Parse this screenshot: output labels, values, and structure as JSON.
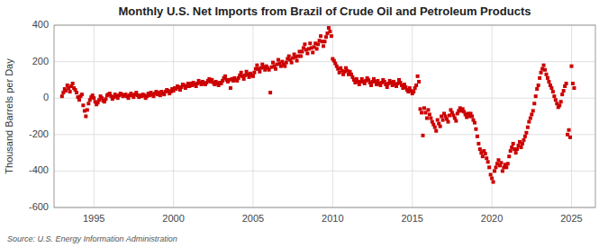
{
  "chart_data": {
    "type": "scatter",
    "title": "Monthly U.S. Net Imports from Brazil of Crude Oil and Petroleum Products",
    "ylabel": "Thousand Barrels per Day",
    "annotations": [
      "Source: U.S. Energy Information Administration"
    ],
    "color": "#cc0000",
    "marker": "square",
    "grid": true,
    "xlim": [
      1992.5,
      2026.5
    ],
    "xticks": [
      1995,
      2000,
      2005,
      2010,
      2015,
      2020,
      2025
    ],
    "ylim": [
      -600,
      400
    ],
    "yticks": [
      -600,
      -400,
      -200,
      0,
      200,
      400
    ],
    "x": [
      1993.0,
      1993.083,
      1993.167,
      1993.25,
      1993.333,
      1993.417,
      1993.5,
      1993.583,
      1993.667,
      1993.75,
      1993.833,
      1993.917,
      1994.0,
      1994.083,
      1994.167,
      1994.25,
      1994.333,
      1994.417,
      1994.5,
      1994.583,
      1994.667,
      1994.75,
      1994.833,
      1994.917,
      1995.0,
      1995.083,
      1995.167,
      1995.25,
      1995.333,
      1995.417,
      1995.5,
      1995.583,
      1995.667,
      1995.75,
      1995.833,
      1995.917,
      1996.0,
      1996.083,
      1996.167,
      1996.25,
      1996.333,
      1996.417,
      1996.5,
      1996.583,
      1996.667,
      1996.75,
      1996.833,
      1996.917,
      1997.0,
      1997.083,
      1997.167,
      1997.25,
      1997.333,
      1997.417,
      1997.5,
      1997.583,
      1997.667,
      1997.75,
      1997.833,
      1997.917,
      1998.0,
      1998.083,
      1998.167,
      1998.25,
      1998.333,
      1998.417,
      1998.5,
      1998.583,
      1998.667,
      1998.75,
      1998.833,
      1998.917,
      1999.0,
      1999.083,
      1999.167,
      1999.25,
      1999.333,
      1999.417,
      1999.5,
      1999.583,
      1999.667,
      1999.75,
      1999.833,
      1999.917,
      2000.0,
      2000.083,
      2000.167,
      2000.25,
      2000.333,
      2000.417,
      2000.5,
      2000.583,
      2000.667,
      2000.75,
      2000.833,
      2000.917,
      2001.0,
      2001.083,
      2001.167,
      2001.25,
      2001.333,
      2001.417,
      2001.5,
      2001.583,
      2001.667,
      2001.75,
      2001.833,
      2001.917,
      2002.0,
      2002.083,
      2002.167,
      2002.25,
      2002.333,
      2002.417,
      2002.5,
      2002.583,
      2002.667,
      2002.75,
      2002.833,
      2002.917,
      2003.0,
      2003.083,
      2003.167,
      2003.25,
      2003.333,
      2003.417,
      2003.5,
      2003.583,
      2003.667,
      2003.75,
      2003.833,
      2003.917,
      2004.0,
      2004.083,
      2004.167,
      2004.25,
      2004.333,
      2004.417,
      2004.5,
      2004.583,
      2004.667,
      2004.75,
      2004.833,
      2004.917,
      2005.0,
      2005.083,
      2005.167,
      2005.25,
      2005.333,
      2005.417,
      2005.5,
      2005.583,
      2005.667,
      2005.75,
      2005.833,
      2005.917,
      2006.0,
      2006.083,
      2006.167,
      2006.25,
      2006.333,
      2006.417,
      2006.5,
      2006.583,
      2006.667,
      2006.75,
      2006.833,
      2006.917,
      2007.0,
      2007.083,
      2007.167,
      2007.25,
      2007.333,
      2007.417,
      2007.5,
      2007.583,
      2007.667,
      2007.75,
      2007.833,
      2007.917,
      2008.0,
      2008.083,
      2008.167,
      2008.25,
      2008.333,
      2008.417,
      2008.5,
      2008.583,
      2008.667,
      2008.75,
      2008.833,
      2008.917,
      2009.0,
      2009.083,
      2009.167,
      2009.25,
      2009.333,
      2009.417,
      2009.5,
      2009.583,
      2009.667,
      2009.75,
      2009.833,
      2009.917,
      2010.0,
      2010.083,
      2010.167,
      2010.25,
      2010.333,
      2010.417,
      2010.5,
      2010.583,
      2010.667,
      2010.75,
      2010.833,
      2010.917,
      2011.0,
      2011.083,
      2011.167,
      2011.25,
      2011.333,
      2011.417,
      2011.5,
      2011.583,
      2011.667,
      2011.75,
      2011.833,
      2011.917,
      2012.0,
      2012.083,
      2012.167,
      2012.25,
      2012.333,
      2012.417,
      2012.5,
      2012.583,
      2012.667,
      2012.75,
      2012.833,
      2012.917,
      2013.0,
      2013.083,
      2013.167,
      2013.25,
      2013.333,
      2013.417,
      2013.5,
      2013.583,
      2013.667,
      2013.75,
      2013.833,
      2013.917,
      2014.0,
      2014.083,
      2014.167,
      2014.25,
      2014.333,
      2014.417,
      2014.5,
      2014.583,
      2014.667,
      2014.75,
      2014.833,
      2014.917,
      2015.0,
      2015.083,
      2015.167,
      2015.25,
      2015.333,
      2015.417,
      2015.5,
      2015.583,
      2015.667,
      2015.75,
      2015.833,
      2015.917,
      2016.0,
      2016.083,
      2016.167,
      2016.25,
      2016.333,
      2016.417,
      2016.5,
      2016.583,
      2016.667,
      2016.75,
      2016.833,
      2016.917,
      2017.0,
      2017.083,
      2017.167,
      2017.25,
      2017.333,
      2017.417,
      2017.5,
      2017.583,
      2017.667,
      2017.75,
      2017.833,
      2017.917,
      2018.0,
      2018.083,
      2018.167,
      2018.25,
      2018.333,
      2018.417,
      2018.5,
      2018.583,
      2018.667,
      2018.75,
      2018.833,
      2018.917,
      2019.0,
      2019.083,
      2019.167,
      2019.25,
      2019.333,
      2019.417,
      2019.5,
      2019.583,
      2019.667,
      2019.75,
      2019.833,
      2019.917,
      2020.0,
      2020.083,
      2020.167,
      2020.25,
      2020.333,
      2020.417,
      2020.5,
      2020.583,
      2020.667,
      2020.75,
      2020.833,
      2020.917,
      2021.0,
      2021.083,
      2021.167,
      2021.25,
      2021.333,
      2021.417,
      2021.5,
      2021.583,
      2021.667,
      2021.75,
      2021.833,
      2021.917,
      2022.0,
      2022.083,
      2022.167,
      2022.25,
      2022.333,
      2022.417,
      2022.5,
      2022.583,
      2022.667,
      2022.75,
      2022.833,
      2022.917,
      2023.0,
      2023.083,
      2023.167,
      2023.25,
      2023.333,
      2023.417,
      2023.5,
      2023.583,
      2023.667,
      2023.75,
      2023.833,
      2023.917,
      2024.0,
      2024.083,
      2024.167,
      2024.25,
      2024.333,
      2024.417,
      2024.5,
      2024.583,
      2024.667,
      2024.75,
      2024.833,
      2024.917,
      2025.0,
      2025.083,
      2025.167
    ],
    "values": [
      10,
      30,
      50,
      40,
      70,
      55,
      35,
      65,
      80,
      55,
      45,
      30,
      5,
      -10,
      10,
      20,
      -40,
      -70,
      -100,
      -65,
      -30,
      -10,
      5,
      15,
      0,
      -20,
      -35,
      -25,
      -10,
      10,
      0,
      -15,
      -20,
      -5,
      15,
      20,
      25,
      10,
      -5,
      5,
      20,
      10,
      0,
      15,
      25,
      20,
      10,
      15,
      20,
      10,
      0,
      15,
      25,
      15,
      5,
      20,
      30,
      15,
      5,
      15,
      10,
      20,
      15,
      0,
      10,
      25,
      15,
      30,
      20,
      10,
      25,
      35,
      20,
      30,
      15,
      35,
      25,
      20,
      35,
      45,
      40,
      25,
      35,
      50,
      40,
      55,
      50,
      65,
      60,
      45,
      60,
      75,
      70,
      55,
      65,
      80,
      65,
      80,
      70,
      85,
      75,
      65,
      80,
      95,
      85,
      75,
      90,
      80,
      75,
      85,
      95,
      105,
      90,
      100,
      85,
      75,
      90,
      80,
      70,
      85,
      80,
      95,
      110,
      120,
      100,
      90,
      100,
      55,
      105,
      95,
      110,
      100,
      95,
      110,
      125,
      140,
      120,
      105,
      125,
      145,
      130,
      115,
      135,
      125,
      120,
      140,
      160,
      180,
      160,
      145,
      165,
      185,
      170,
      155,
      175,
      165,
      155,
      30,
      170,
      195,
      175,
      160,
      185,
      210,
      190,
      175,
      200,
      185,
      175,
      195,
      215,
      230,
      210,
      195,
      220,
      240,
      225,
      205,
      230,
      255,
      230,
      255,
      275,
      295,
      265,
      245,
      270,
      300,
      275,
      250,
      280,
      300,
      270,
      295,
      315,
      340,
      310,
      285,
      310,
      335,
      355,
      385,
      365,
      340,
      215,
      205,
      190,
      175,
      160,
      140,
      165,
      150,
      130,
      145,
      165,
      150,
      130,
      145,
      130,
      115,
      100,
      85,
      105,
      90,
      75,
      90,
      105,
      90,
      80,
      95,
      110,
      100,
      85,
      70,
      90,
      105,
      90,
      75,
      95,
      80,
      70,
      85,
      100,
      90,
      75,
      60,
      80,
      95,
      85,
      70,
      90,
      75,
      65,
      80,
      100,
      85,
      70,
      55,
      75,
      60,
      45,
      35,
      55,
      40,
      25,
      35,
      55,
      70,
      120,
      90,
      -60,
      -80,
      -205,
      -55,
      -80,
      -110,
      -65,
      -90,
      -110,
      -130,
      -145,
      -160,
      -180,
      -120,
      -140,
      -155,
      -100,
      -120,
      -85,
      -100,
      -115,
      -130,
      -95,
      -65,
      -80,
      -95,
      -110,
      -125,
      -85,
      -70,
      -55,
      -70,
      -60,
      -75,
      -90,
      -105,
      -85,
      -100,
      -85,
      -100,
      -120,
      -135,
      -170,
      -210,
      -250,
      -280,
      -300,
      -320,
      -290,
      -305,
      -330,
      -350,
      -380,
      -420,
      -440,
      -460,
      -400,
      -380,
      -360,
      -340,
      -370,
      -355,
      -400,
      -380,
      -365,
      -380,
      -360,
      -320,
      -290,
      -270,
      -250,
      -280,
      -300,
      -280,
      -260,
      -240,
      -270,
      -250,
      -230,
      -210,
      -190,
      -160,
      -130,
      -110,
      -90,
      -70,
      -30,
      10,
      50,
      70,
      110,
      140,
      160,
      180,
      155,
      130,
      110,
      90,
      70,
      55,
      35,
      10,
      -10,
      -30,
      -50,
      -40,
      -20,
      20,
      40,
      65,
      80,
      -200,
      -175,
      -215,
      175,
      80,
      55
    ]
  }
}
